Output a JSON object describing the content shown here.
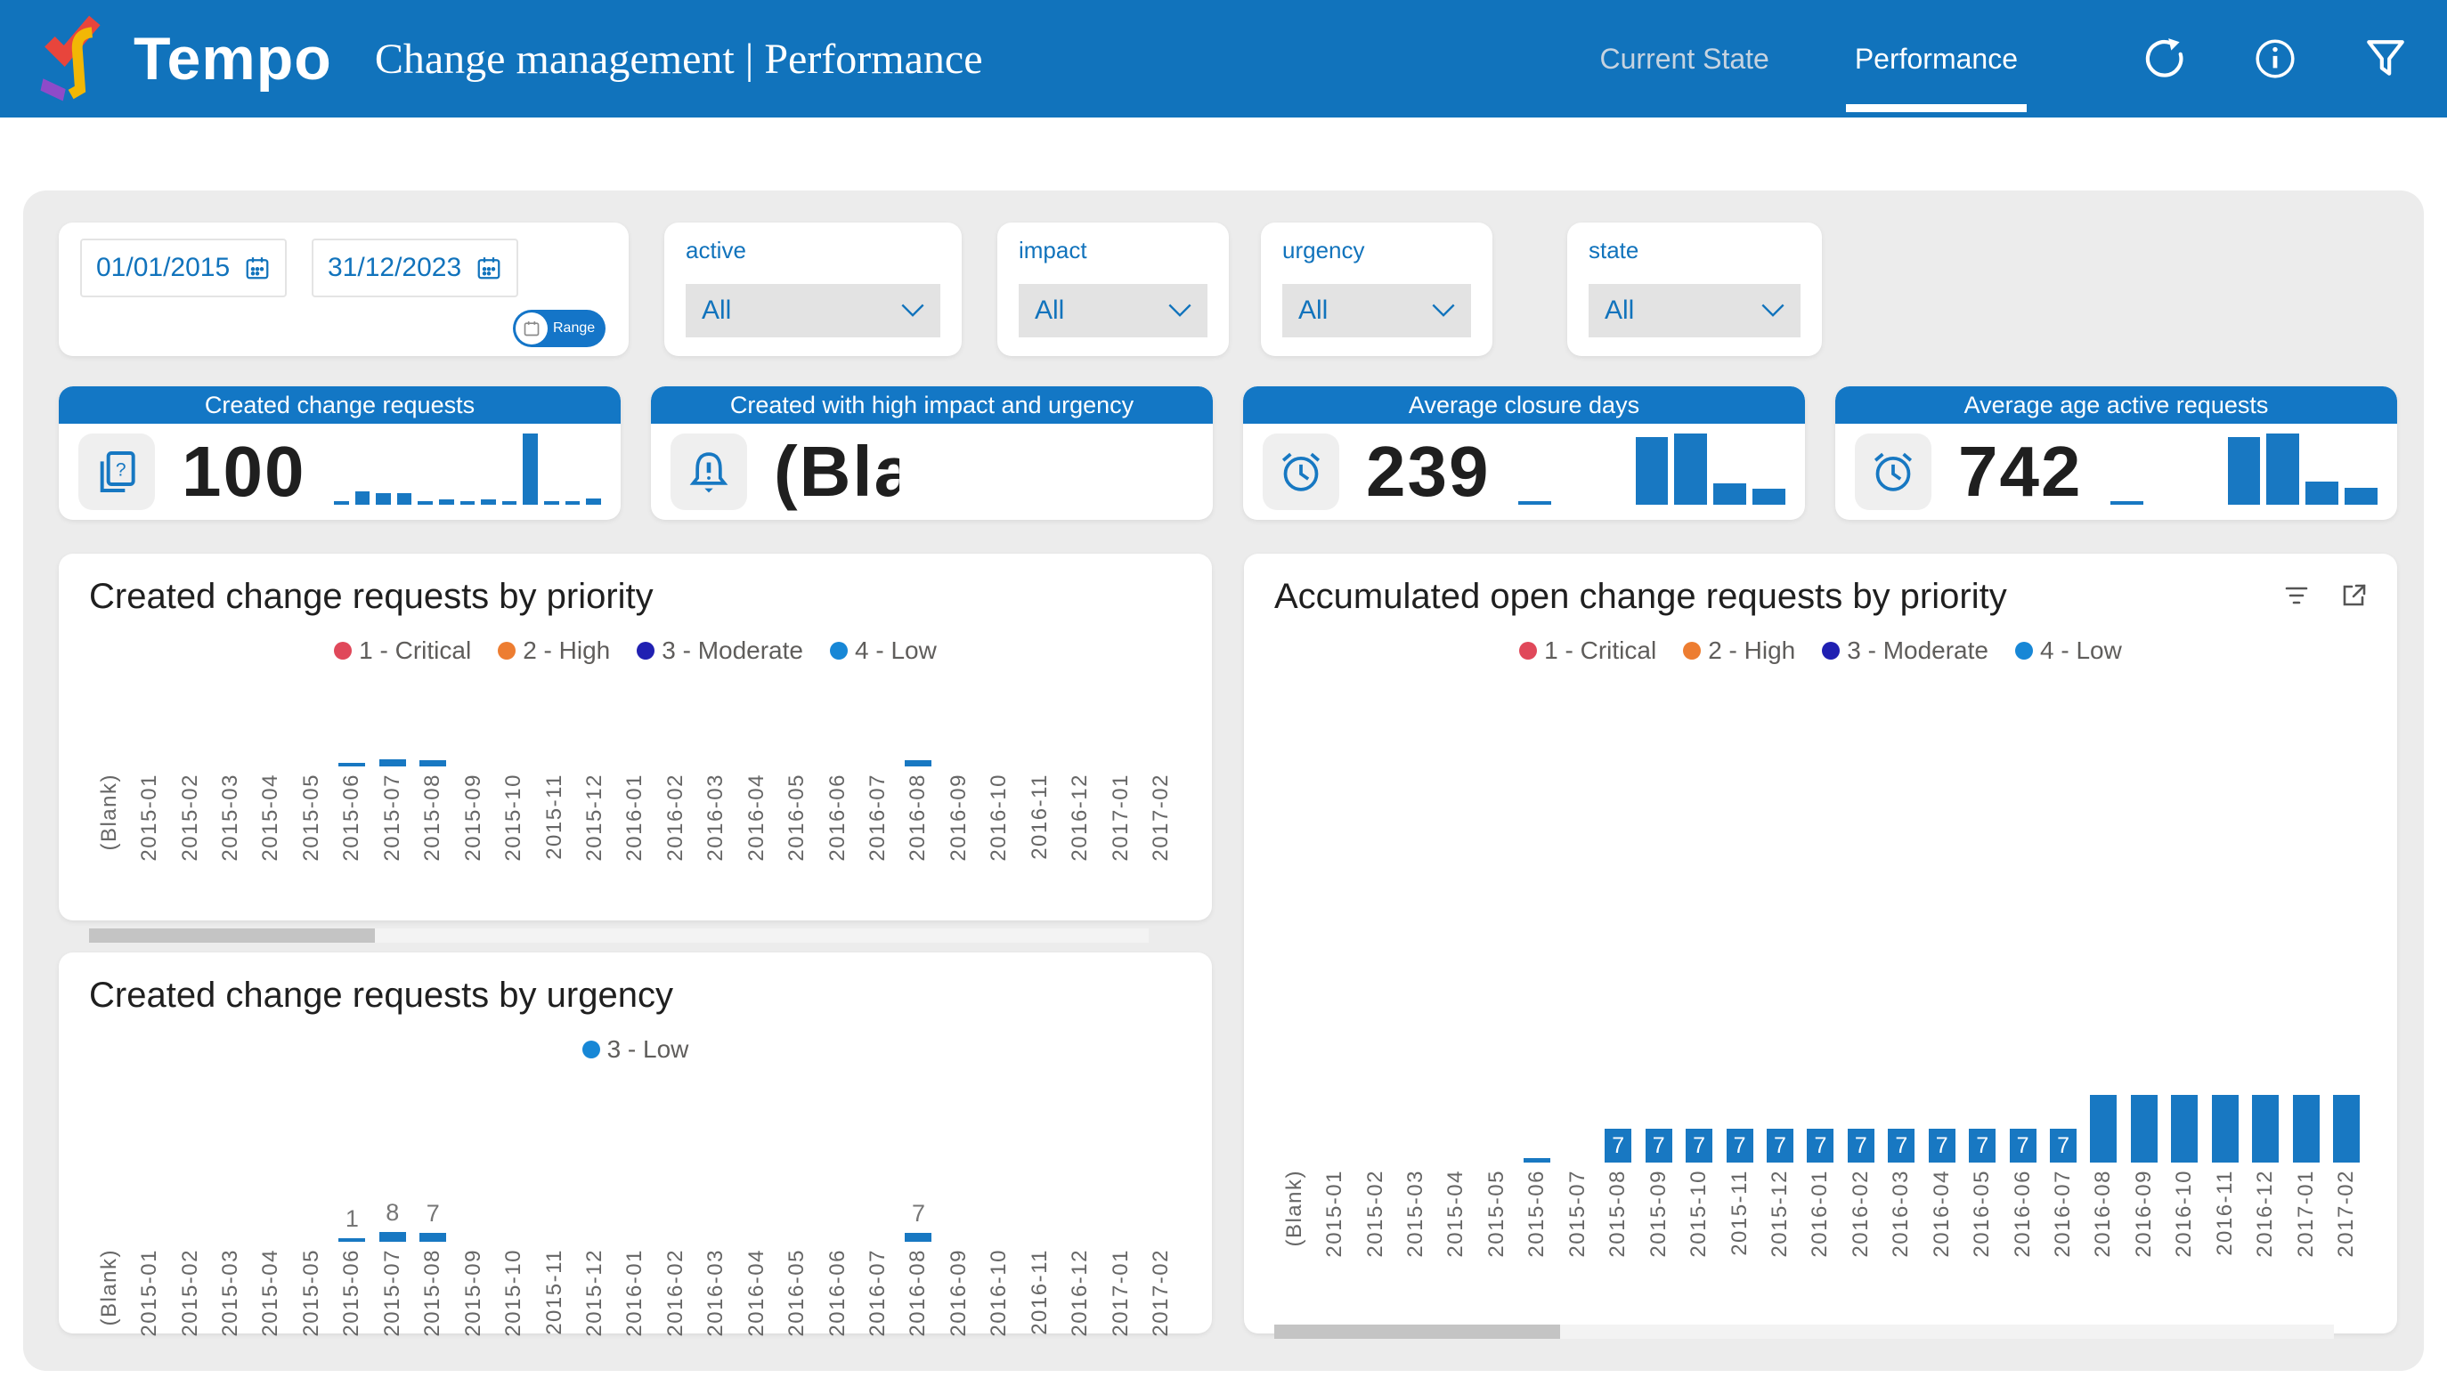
{
  "header": {
    "brand": "Tempo",
    "title": "Change management | Performance",
    "tabs": [
      {
        "label": "Current State",
        "active": false
      },
      {
        "label": "Performance",
        "active": true
      }
    ],
    "action_icons": [
      "refresh-icon",
      "info-icon",
      "filter-icon"
    ]
  },
  "filters": {
    "date_from": "01/01/2015",
    "date_to": "31/12/2023",
    "range_toggle_label": "Range",
    "dropdowns": [
      {
        "label": "active",
        "value": "All"
      },
      {
        "label": "impact",
        "value": "All"
      },
      {
        "label": "urgency",
        "value": "All"
      },
      {
        "label": "state",
        "value": "All"
      }
    ]
  },
  "kpis": [
    {
      "title": "Created change requests",
      "value": "100",
      "icon": "change-requests-icon",
      "sparkline": [
        1,
        8,
        7,
        7,
        2,
        3,
        1,
        3,
        1,
        43,
        1,
        1,
        4
      ]
    },
    {
      "title": "Created with high impact and urgency",
      "value": "(Bla...",
      "icon": "alert-bell-icon",
      "sparkline": []
    },
    {
      "title": "Average closure days",
      "value": "239....",
      "icon": "alarm-clock-icon",
      "sparkline": [
        4,
        0,
        0,
        95,
        100,
        30,
        22
      ]
    },
    {
      "title": "Average age active requests",
      "value": "742....",
      "icon": "alarm-clock-icon",
      "sparkline": [
        4,
        0,
        0,
        95,
        100,
        32,
        24
      ]
    }
  ],
  "colors": {
    "header_blue": "#1173bc",
    "band_blue": "#1377c5",
    "bar_blue": "#1878c2",
    "panel_gray": "#ececec",
    "critical": "#e0485a",
    "high": "#ed7d31",
    "moderate": "#2020b2",
    "low": "#1787d6"
  },
  "chart_data": [
    {
      "type": "bar",
      "title": "Created change requests by priority",
      "legend": [
        {
          "label": "1 - Critical",
          "color": "#e0485a"
        },
        {
          "label": "2 - High",
          "color": "#ed7d31"
        },
        {
          "label": "3 - Moderate",
          "color": "#2020b2"
        },
        {
          "label": "4 - Low",
          "color": "#1787d6"
        }
      ],
      "categories": [
        "(Blank)",
        "2015-01",
        "2015-02",
        "2015-03",
        "2015-04",
        "2015-05",
        "2015-06",
        "2015-07",
        "2015-08",
        "2015-09",
        "2015-10",
        "2015-11",
        "2015-12",
        "2016-01",
        "2016-02",
        "2016-03",
        "2016-04",
        "2016-05",
        "2016-06",
        "2016-07",
        "2016-08",
        "2016-09",
        "2016-10",
        "2016-11",
        "2016-12",
        "2017-01",
        "2017-02"
      ],
      "series": [
        {
          "name": "4 - Low",
          "color": "#1878c2",
          "values": [
            0,
            0,
            0,
            0,
            0,
            0,
            1,
            8,
            7,
            0,
            0,
            0,
            0,
            0,
            0,
            0,
            0,
            0,
            0,
            0,
            7,
            0,
            0,
            0,
            0,
            0,
            0
          ]
        }
      ],
      "labels": null,
      "label_position": "none",
      "xlabel": "",
      "ylabel": "",
      "ylim": [
        0,
        100
      ],
      "grid": false,
      "legend_position": "top",
      "scroll_thumb_fraction": 0.27
    },
    {
      "type": "bar",
      "title": "Created change requests by urgency",
      "legend": [
        {
          "label": "3 - Low",
          "color": "#1787d6"
        }
      ],
      "categories": [
        "(Blank)",
        "2015-01",
        "2015-02",
        "2015-03",
        "2015-04",
        "2015-05",
        "2015-06",
        "2015-07",
        "2015-08",
        "2015-09",
        "2015-10",
        "2015-11",
        "2015-12",
        "2016-01",
        "2016-02",
        "2016-03",
        "2016-04",
        "2016-05",
        "2016-06",
        "2016-07",
        "2016-08",
        "2016-09",
        "2016-10",
        "2016-11",
        "2016-12",
        "2017-01",
        "2017-02"
      ],
      "series": [
        {
          "name": "3 - Low",
          "color": "#1878c2",
          "values": [
            0,
            0,
            0,
            0,
            0,
            0,
            1,
            8,
            7,
            0,
            0,
            0,
            0,
            0,
            0,
            0,
            0,
            0,
            0,
            0,
            7,
            0,
            0,
            0,
            0,
            0,
            0
          ]
        }
      ],
      "labels": [
        "",
        "",
        "",
        "",
        "",
        "",
        "1",
        "8",
        "7",
        "",
        "",
        "",
        "",
        "",
        "",
        "",
        "",
        "",
        "",
        "",
        "7",
        "",
        "",
        "",
        "",
        "",
        ""
      ],
      "label_position": "above",
      "xlabel": "",
      "ylabel": "",
      "ylim": [
        0,
        100
      ],
      "grid": false,
      "legend_position": "top",
      "scroll_thumb_fraction": 0.27
    },
    {
      "type": "bar",
      "title": "Accumulated open change requests by priority",
      "legend": [
        {
          "label": "1 - Critical",
          "color": "#e0485a"
        },
        {
          "label": "2 - High",
          "color": "#ed7d31"
        },
        {
          "label": "3 - Moderate",
          "color": "#2020b2"
        },
        {
          "label": "4 - Low",
          "color": "#1787d6"
        }
      ],
      "categories": [
        "(Blank)",
        "2015-01",
        "2015-02",
        "2015-03",
        "2015-04",
        "2015-05",
        "2015-06",
        "2015-07",
        "2015-08",
        "2015-09",
        "2015-10",
        "2015-11",
        "2015-12",
        "2016-01",
        "2016-02",
        "2016-03",
        "2016-04",
        "2016-05",
        "2016-06",
        "2016-07",
        "2016-08",
        "2016-09",
        "2016-10",
        "2016-11",
        "2016-12",
        "2017-01",
        "2017-02"
      ],
      "series": [
        {
          "name": "4 - Low",
          "color": "#1878c2",
          "values": [
            0,
            0,
            0,
            0,
            0,
            0,
            1,
            0,
            7,
            7,
            7,
            7,
            7,
            7,
            7,
            7,
            7,
            7,
            7,
            7,
            14,
            14,
            14,
            14,
            14,
            14,
            14
          ]
        }
      ],
      "labels": [
        "",
        "",
        "",
        "",
        "",
        "",
        "",
        "",
        "7",
        "7",
        "7",
        "7",
        "7",
        "7",
        "7",
        "7",
        "7",
        "7",
        "7",
        "7",
        "",
        "",
        "",
        "",
        "",
        "",
        ""
      ],
      "label_position": "inside",
      "xlabel": "",
      "ylabel": "",
      "ylim": [
        0,
        100
      ],
      "grid": false,
      "legend_position": "top",
      "visual_header_icons": [
        "visual-filters-icon",
        "focus-mode-icon"
      ],
      "scroll_thumb_fraction": 0.27
    }
  ]
}
